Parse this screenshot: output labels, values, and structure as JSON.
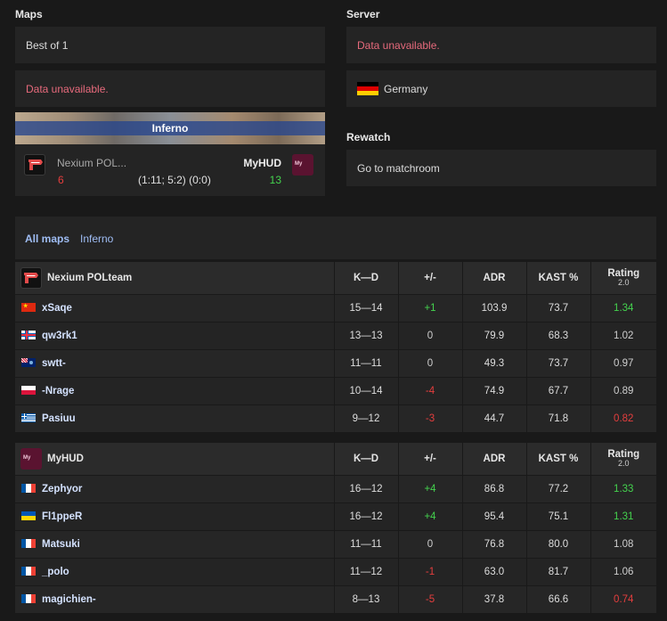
{
  "maps": {
    "heading": "Maps",
    "format": "Best of 1",
    "veto_error": "Data unavailable.",
    "map_name": "Inferno",
    "team1_name": "Nexium POL...",
    "team1_score": "6",
    "team2_name": "MyHUD",
    "team2_score": "13",
    "half_scores": "(1:11; 5:2) (0:0)"
  },
  "server": {
    "heading": "Server",
    "error": "Data unavailable.",
    "location": "Germany",
    "location_flag": "germany-flag-icon"
  },
  "rewatch": {
    "heading": "Rewatch",
    "link": "Go to matchroom"
  },
  "tabs": {
    "all_maps": "All maps",
    "inferno": "Inferno"
  },
  "columns": {
    "kd": "K—D",
    "plus_minus": "+/-",
    "adr": "ADR",
    "kast": "KAST %",
    "rating": "Rating",
    "rating_version": "2.0"
  },
  "team1": {
    "name": "Nexium POLteam",
    "players": [
      {
        "name": "xSaqe",
        "flag": "china",
        "kd": "15—14",
        "pm": "+1",
        "adr": "103.9",
        "kast": "73.7",
        "rating": "1.34"
      },
      {
        "name": "qw3rk1",
        "flag": "faroe",
        "kd": "13—13",
        "pm": "0",
        "adr": "79.9",
        "kast": "68.3",
        "rating": "1.02"
      },
      {
        "name": "swtt-",
        "flag": "falkland",
        "kd": "11—11",
        "pm": "0",
        "adr": "49.3",
        "kast": "73.7",
        "rating": "0.97"
      },
      {
        "name": "-Nrage",
        "flag": "poland",
        "kd": "10—14",
        "pm": "-4",
        "adr": "74.9",
        "kast": "67.7",
        "rating": "0.89"
      },
      {
        "name": "Pasiuu",
        "flag": "greece",
        "kd": "9—12",
        "pm": "-3",
        "adr": "44.7",
        "kast": "71.8",
        "rating": "0.82"
      }
    ]
  },
  "team2": {
    "name": "MyHUD",
    "players": [
      {
        "name": "Zephyor",
        "flag": "france",
        "kd": "16—12",
        "pm": "+4",
        "adr": "86.8",
        "kast": "77.2",
        "rating": "1.33"
      },
      {
        "name": "Fl1ppeR",
        "flag": "ukraine",
        "kd": "16—12",
        "pm": "+4",
        "adr": "95.4",
        "kast": "75.1",
        "rating": "1.31"
      },
      {
        "name": "Matsuki",
        "flag": "france",
        "kd": "11—11",
        "pm": "0",
        "adr": "76.8",
        "kast": "80.0",
        "rating": "1.08"
      },
      {
        "name": "_polo",
        "flag": "france",
        "kd": "11—12",
        "pm": "-1",
        "adr": "63.0",
        "kast": "81.7",
        "rating": "1.06"
      },
      {
        "name": "magichien-",
        "flag": "france",
        "kd": "8—13",
        "pm": "-5",
        "adr": "37.8",
        "kast": "66.6",
        "rating": "0.74"
      }
    ]
  },
  "logo_text": "My"
}
